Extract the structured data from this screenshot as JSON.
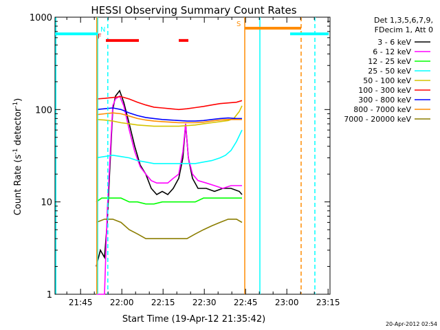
{
  "chart_data": {
    "type": "line",
    "title": "HESSI Observing Summary Count Rates",
    "xlabel": "Start Time (19-Apr-12 21:35:42)",
    "ylabel": "Count Rate (s⁻¹ detector⁻¹)",
    "ylabel_main": "Count Rate (s",
    "ylabel_sup1": "-1",
    "ylabel_mid": " detector",
    "ylabel_sup2": "-1",
    "ylabel_end": ")",
    "y_scale": "log",
    "ylim": [
      1,
      1000
    ],
    "xlim_minutes_after_start": [
      0,
      100
    ],
    "x_tick_labels": [
      "21:45",
      "22:00",
      "22:15",
      "22:30",
      "22:45",
      "23:00",
      "23:15"
    ],
    "x_tick_minutes": [
      9.3,
      24.3,
      39.3,
      54.3,
      69.3,
      84.3,
      99.3
    ],
    "y_tick_labels": [
      "1",
      "10",
      "100",
      "1000"
    ],
    "y_tick_values": [
      1,
      10,
      100,
      1000
    ],
    "legend_header": [
      "Det 1,3,5,6,7,9,",
      "FDecim 1, Att 0"
    ],
    "legend_position": "right",
    "footer_date": "20-Apr-2012 02:54",
    "series": [
      {
        "name": "3 - 6 keV",
        "color": "#000000",
        "points": [
          [
            15,
            2
          ],
          [
            16.5,
            3
          ],
          [
            18,
            2.5
          ],
          [
            19,
            6
          ],
          [
            20,
            25
          ],
          [
            21,
            100
          ],
          [
            22,
            140
          ],
          [
            23.5,
            160
          ],
          [
            25,
            120
          ],
          [
            27,
            70
          ],
          [
            29,
            40
          ],
          [
            31,
            25
          ],
          [
            33,
            20
          ],
          [
            35,
            14
          ],
          [
            37,
            12
          ],
          [
            39,
            13
          ],
          [
            41,
            12
          ],
          [
            43,
            14
          ],
          [
            45,
            18
          ],
          [
            46.5,
            30
          ],
          [
            47.5,
            70
          ],
          [
            48.5,
            30
          ],
          [
            50,
            18
          ],
          [
            52,
            14
          ],
          [
            55,
            14
          ],
          [
            58,
            13
          ],
          [
            61,
            14
          ],
          [
            64,
            14
          ],
          [
            67,
            13
          ],
          [
            68,
            12
          ]
        ]
      },
      {
        "name": "6 - 12 keV",
        "color": "#ff00ff",
        "points": [
          [
            15,
            1
          ],
          [
            16.5,
            1
          ],
          [
            18,
            1
          ],
          [
            19,
            8
          ],
          [
            20,
            30
          ],
          [
            21,
            110
          ],
          [
            22,
            130
          ],
          [
            23.5,
            140
          ],
          [
            25,
            110
          ],
          [
            27,
            60
          ],
          [
            29,
            35
          ],
          [
            31,
            24
          ],
          [
            33,
            20
          ],
          [
            35,
            17
          ],
          [
            37,
            16
          ],
          [
            39,
            16
          ],
          [
            41,
            16
          ],
          [
            43,
            18
          ],
          [
            45,
            20
          ],
          [
            46.5,
            35
          ],
          [
            47.5,
            70
          ],
          [
            48.5,
            30
          ],
          [
            50,
            20
          ],
          [
            52,
            17
          ],
          [
            55,
            16
          ],
          [
            58,
            15
          ],
          [
            61,
            14
          ],
          [
            64,
            15
          ],
          [
            67,
            15
          ],
          [
            68,
            15
          ]
        ]
      },
      {
        "name": "12 - 25 keV",
        "color": "#00ff00",
        "points": [
          [
            15,
            10
          ],
          [
            17,
            11
          ],
          [
            19,
            11
          ],
          [
            21,
            11
          ],
          [
            24,
            11
          ],
          [
            27,
            10
          ],
          [
            30,
            10
          ],
          [
            33,
            9.5
          ],
          [
            36,
            9.5
          ],
          [
            39,
            10
          ],
          [
            42,
            10
          ],
          [
            45,
            10
          ],
          [
            48,
            10
          ],
          [
            51,
            10
          ],
          [
            54,
            11
          ],
          [
            57,
            11
          ],
          [
            60,
            11
          ],
          [
            63,
            11
          ],
          [
            66,
            11
          ],
          [
            68,
            11
          ]
        ]
      },
      {
        "name": "25 - 50 keV",
        "color": "#00ffff",
        "points": [
          [
            15,
            30
          ],
          [
            18,
            31
          ],
          [
            21,
            32
          ],
          [
            24,
            31
          ],
          [
            27,
            30
          ],
          [
            30,
            28
          ],
          [
            33,
            27
          ],
          [
            36,
            26
          ],
          [
            39,
            26
          ],
          [
            42,
            26
          ],
          [
            45,
            26
          ],
          [
            48,
            26
          ],
          [
            51,
            26
          ],
          [
            54,
            27
          ],
          [
            57,
            28
          ],
          [
            60,
            30
          ],
          [
            62,
            32
          ],
          [
            64,
            36
          ],
          [
            66,
            45
          ],
          [
            68,
            60
          ]
        ]
      },
      {
        "name": "50 - 100 keV",
        "color": "#d4c400",
        "points": [
          [
            15,
            78
          ],
          [
            18,
            77
          ],
          [
            21,
            75
          ],
          [
            24,
            72
          ],
          [
            27,
            70
          ],
          [
            30,
            68
          ],
          [
            33,
            67
          ],
          [
            36,
            66
          ],
          [
            39,
            66
          ],
          [
            42,
            66
          ],
          [
            45,
            66
          ],
          [
            48,
            67
          ],
          [
            51,
            68
          ],
          [
            54,
            70
          ],
          [
            57,
            72
          ],
          [
            60,
            74
          ],
          [
            63,
            76
          ],
          [
            65,
            80
          ],
          [
            67,
            95
          ],
          [
            68,
            110
          ]
        ]
      },
      {
        "name": "100 - 300 keV",
        "color": "#ff0000",
        "points": [
          [
            15,
            130
          ],
          [
            18,
            132
          ],
          [
            21,
            135
          ],
          [
            24,
            138
          ],
          [
            27,
            130
          ],
          [
            30,
            120
          ],
          [
            33,
            112
          ],
          [
            36,
            106
          ],
          [
            39,
            104
          ],
          [
            42,
            102
          ],
          [
            45,
            100
          ],
          [
            48,
            102
          ],
          [
            51,
            105
          ],
          [
            54,
            108
          ],
          [
            57,
            112
          ],
          [
            60,
            116
          ],
          [
            63,
            118
          ],
          [
            66,
            120
          ],
          [
            68,
            125
          ]
        ]
      },
      {
        "name": "300 - 800 keV",
        "color": "#0000ff",
        "points": [
          [
            15,
            100
          ],
          [
            18,
            102
          ],
          [
            21,
            104
          ],
          [
            24,
            100
          ],
          [
            27,
            92
          ],
          [
            30,
            86
          ],
          [
            33,
            82
          ],
          [
            36,
            80
          ],
          [
            39,
            78
          ],
          [
            42,
            77
          ],
          [
            45,
            76
          ],
          [
            48,
            75
          ],
          [
            51,
            75
          ],
          [
            54,
            76
          ],
          [
            57,
            78
          ],
          [
            60,
            80
          ],
          [
            63,
            81
          ],
          [
            66,
            80
          ],
          [
            68,
            80
          ]
        ]
      },
      {
        "name": "800 - 7000 keV",
        "color": "#ff8c00",
        "points": [
          [
            15,
            88
          ],
          [
            18,
            90
          ],
          [
            21,
            92
          ],
          [
            24,
            90
          ],
          [
            27,
            85
          ],
          [
            30,
            80
          ],
          [
            33,
            77
          ],
          [
            36,
            75
          ],
          [
            39,
            74
          ],
          [
            42,
            73
          ],
          [
            45,
            72
          ],
          [
            48,
            72
          ],
          [
            51,
            72
          ],
          [
            54,
            73
          ],
          [
            57,
            75
          ],
          [
            60,
            77
          ],
          [
            63,
            78
          ],
          [
            66,
            78
          ],
          [
            68,
            78
          ]
        ]
      },
      {
        "name": "7000 - 20000 keV",
        "color": "#8b7d00",
        "points": [
          [
            15,
            6
          ],
          [
            18,
            6.5
          ],
          [
            21,
            6.5
          ],
          [
            24,
            6
          ],
          [
            27,
            5
          ],
          [
            30,
            4.5
          ],
          [
            33,
            4
          ],
          [
            36,
            4
          ],
          [
            39,
            4
          ],
          [
            42,
            4
          ],
          [
            45,
            4
          ],
          [
            48,
            4
          ],
          [
            51,
            4.5
          ],
          [
            54,
            5
          ],
          [
            57,
            5.5
          ],
          [
            60,
            6
          ],
          [
            63,
            6.5
          ],
          [
            66,
            6.5
          ],
          [
            68,
            6
          ]
        ]
      }
    ],
    "bars": [
      {
        "label": "F",
        "color": "#ff0000",
        "y": 560,
        "segments": [
          [
            18.5,
            30.5
          ],
          [
            45,
            48.5
          ]
        ]
      },
      {
        "label": "N",
        "color": "#00ffff",
        "y": 660,
        "segments": [
          [
            0,
            15.5
          ],
          [
            85.5,
            99.5
          ]
        ]
      },
      {
        "label": "S",
        "color": "#ff8c00",
        "y": 760,
        "segments": [
          [
            69,
            89.5
          ]
        ]
      }
    ],
    "verticals": [
      {
        "x": 15.5,
        "color": "#00ffff",
        "style": "solid"
      },
      {
        "x": 15.2,
        "color": "#ff8c00",
        "style": "solid"
      },
      {
        "x": 69,
        "color": "#ff8c00",
        "style": "solid"
      },
      {
        "x": 74.5,
        "color": "#00ffff",
        "style": "solid"
      },
      {
        "x": 89.5,
        "color": "#ff8c00",
        "style": "dashed"
      },
      {
        "x": 94.5,
        "color": "#00ffff",
        "style": "dashed"
      },
      {
        "x": 19.2,
        "color": "#00ffff",
        "style": "dashed"
      },
      {
        "x": 0.3,
        "color": "#00ffff",
        "style": "solid"
      }
    ]
  }
}
